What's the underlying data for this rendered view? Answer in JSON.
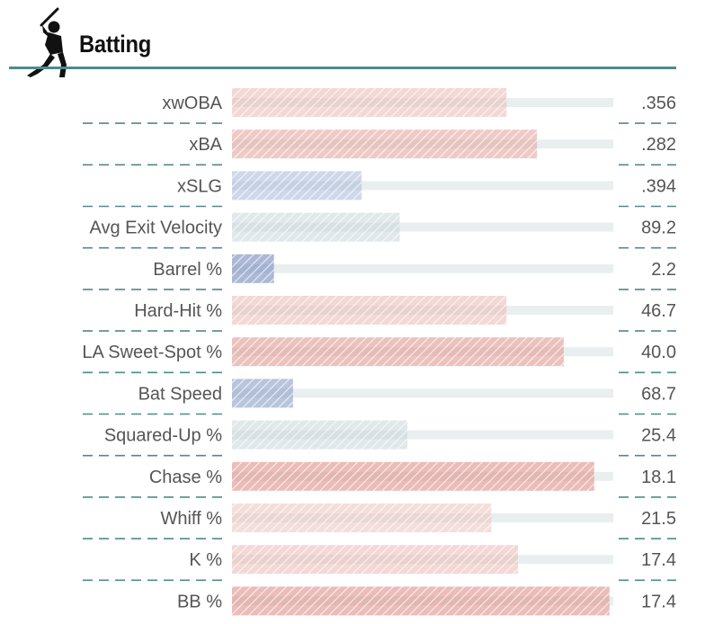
{
  "header": {
    "title": "Batting",
    "icon": "batter-silhouette-icon",
    "accent_color": "#4f8a8b"
  },
  "chart_data": {
    "type": "bar",
    "orientation": "horizontal",
    "title": "Batting",
    "value_scale": "percentile",
    "xlim": [
      0,
      100
    ],
    "grid": false,
    "legend": "none",
    "rows": [
      {
        "label": "xwOBA",
        "display_value": ".356",
        "percentile": 72,
        "color": "#e8b8b2",
        "opacity": 0.55
      },
      {
        "label": "xBA",
        "display_value": ".282",
        "percentile": 80,
        "color": "#e3a7a0",
        "opacity": 0.6
      },
      {
        "label": "xSLG",
        "display_value": ".394",
        "percentile": 34,
        "color": "#a8b8d8",
        "opacity": 0.55
      },
      {
        "label": "Avg Exit Velocity",
        "display_value": "89.2",
        "percentile": 44,
        "color": "#c6d4d8",
        "opacity": 0.55
      },
      {
        "label": "Barrel %",
        "display_value": "2.2",
        "percentile": 11,
        "color": "#7e92c0",
        "opacity": 0.65
      },
      {
        "label": "Hard-Hit %",
        "display_value": "46.7",
        "percentile": 72,
        "color": "#e8b8b2",
        "opacity": 0.55
      },
      {
        "label": "LA Sweet-Spot %",
        "display_value": "40.0",
        "percentile": 87,
        "color": "#e09a92",
        "opacity": 0.6
      },
      {
        "label": "Bat Speed",
        "display_value": "68.7",
        "percentile": 16,
        "color": "#8a9cc6",
        "opacity": 0.6
      },
      {
        "label": "Squared-Up %",
        "display_value": "25.4",
        "percentile": 46,
        "color": "#c6d4d8",
        "opacity": 0.55
      },
      {
        "label": "Chase %",
        "display_value": "18.1",
        "percentile": 95,
        "color": "#de8f88",
        "opacity": 0.6
      },
      {
        "label": "Whiff %",
        "display_value": "21.5",
        "percentile": 68,
        "color": "#ebc2bd",
        "opacity": 0.55
      },
      {
        "label": "K %",
        "display_value": "17.4",
        "percentile": 75,
        "color": "#e8b8b2",
        "opacity": 0.55
      },
      {
        "label": "BB %",
        "display_value": "17.4",
        "percentile": 99,
        "color": "#de8f88",
        "opacity": 0.6
      }
    ]
  },
  "colors": {
    "track": "#e9efef",
    "divider": "#4f8a8b",
    "text": "#555555"
  }
}
